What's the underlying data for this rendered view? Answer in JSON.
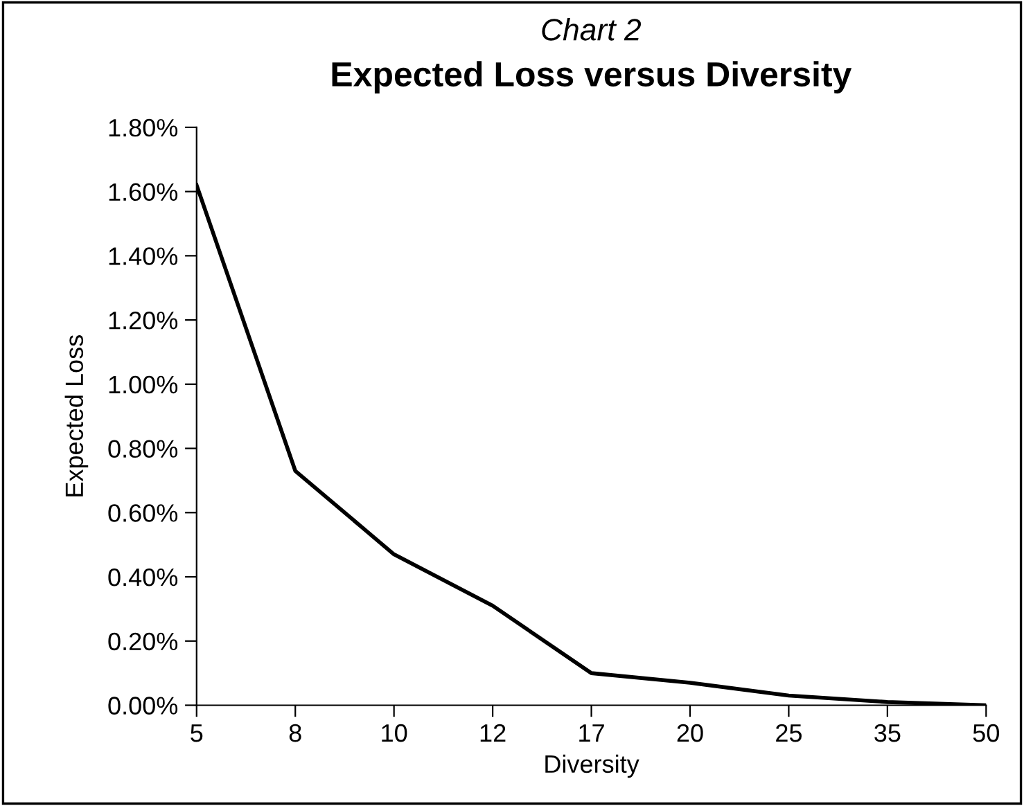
{
  "chart_data": {
    "type": "line",
    "subtitle": "Chart 2",
    "title": "Expected Loss versus Diversity",
    "xlabel": "Diversity",
    "ylabel": "Expected Loss",
    "categories": [
      "5",
      "8",
      "10",
      "12",
      "17",
      "20",
      "25",
      "35",
      "50"
    ],
    "series": [
      {
        "color": "#000000",
        "values": [
          1.62,
          0.73,
          0.47,
          0.31,
          0.1,
          0.07,
          0.03,
          0.01,
          0.0
        ]
      }
    ],
    "ylim": [
      0,
      1.8
    ],
    "yticks": [
      {
        "value": 0,
        "label": "0.00%"
      },
      {
        "value": 0.2,
        "label": "0.20%"
      },
      {
        "value": 0.4,
        "label": "0.40%"
      },
      {
        "value": 0.6,
        "label": "0.60%"
      },
      {
        "value": 0.8,
        "label": "0.80%"
      },
      {
        "value": 1.0,
        "label": "1.00%"
      },
      {
        "value": 1.2,
        "label": "1.20%"
      },
      {
        "value": 1.4,
        "label": "1.40%"
      },
      {
        "value": 1.6,
        "label": "1.60%"
      },
      {
        "value": 1.8,
        "label": "1.80%"
      }
    ],
    "grid": false,
    "legend": false,
    "marker": "none",
    "line_style": "solid"
  }
}
